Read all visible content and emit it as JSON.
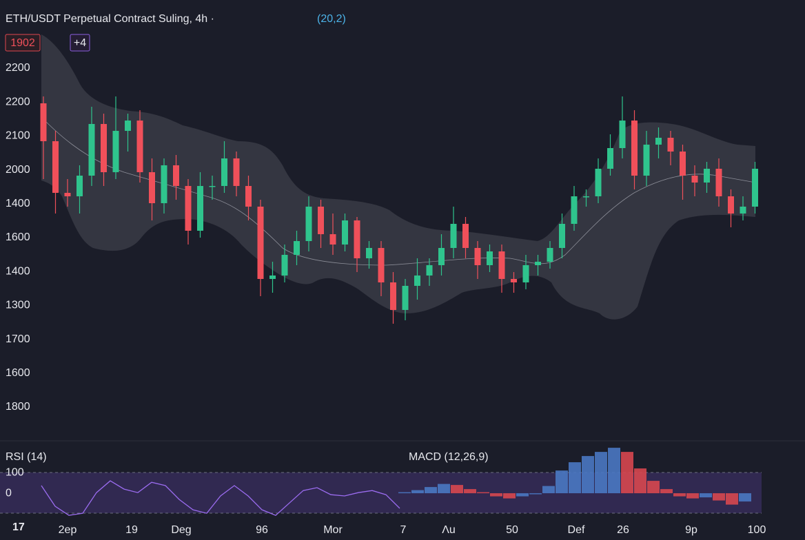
{
  "header": {
    "title": "ETH/USDT Perpetual Contract Suling, 4h ·",
    "params": "(20,2)",
    "badges": [
      "1902",
      "+4"
    ],
    "corner": "17"
  },
  "chart_data": [
    {
      "type": "candlestick",
      "ylim": [
        1700,
        2300
      ],
      "up_color": "#2fc48d",
      "down_color": "#f0505a",
      "axis_labels": [
        2200,
        2200,
        2100,
        2000,
        1400,
        1600,
        1400,
        1300,
        1700,
        1600,
        1800
      ],
      "x_labels": [
        "2ep",
        "19",
        "Deg",
        "96",
        "Mor",
        "7",
        "Λu",
        "50",
        "Def",
        "26",
        "9p",
        "100"
      ],
      "open": [
        2190,
        2135,
        2060,
        2055,
        2085,
        2160,
        2090,
        2150,
        2165,
        2090,
        2045,
        2100,
        2070,
        2005,
        2070,
        2070,
        2110,
        2070,
        2040,
        1935,
        1940,
        1970,
        1990,
        2040,
        2000,
        1985,
        2020,
        1965,
        1980,
        1930,
        1890,
        1925,
        1940,
        1955,
        1980,
        2015,
        1980,
        1955,
        1975,
        1935,
        1930,
        1955,
        1960,
        1980,
        2015,
        2055,
        2055,
        2095,
        2125,
        2165,
        2085,
        2130,
        2140,
        2120,
        2085,
        2075,
        2095,
        2055,
        2030,
        2040
      ],
      "high": [
        2200,
        2150,
        2080,
        2100,
        2185,
        2175,
        2200,
        2175,
        2180,
        2110,
        2110,
        2115,
        2080,
        2090,
        2085,
        2135,
        2120,
        2085,
        2050,
        1960,
        1985,
        2005,
        2055,
        2050,
        2030,
        2030,
        2025,
        1990,
        1990,
        1945,
        1935,
        1965,
        1965,
        2000,
        2040,
        2025,
        1990,
        1985,
        1985,
        1945,
        1970,
        1970,
        1990,
        2030,
        2070,
        2065,
        2110,
        2145,
        2200,
        2180,
        2150,
        2155,
        2150,
        2130,
        2100,
        2105,
        2110,
        2065,
        2055,
        2105
      ],
      "low": [
        2080,
        2030,
        2040,
        2030,
        2070,
        2070,
        2080,
        2120,
        2075,
        2020,
        2030,
        2050,
        1985,
        1995,
        2050,
        2060,
        2055,
        2020,
        1910,
        1915,
        1930,
        1955,
        1975,
        1980,
        1970,
        1975,
        1945,
        1950,
        1910,
        1870,
        1875,
        1905,
        1925,
        1940,
        1965,
        1965,
        1935,
        1945,
        1915,
        1915,
        1920,
        1940,
        1950,
        1965,
        2005,
        2040,
        2045,
        2085,
        2110,
        2065,
        2070,
        2110,
        2100,
        2050,
        2055,
        2060,
        2040,
        2010,
        2020,
        2030
      ],
      "close": [
        2135,
        2060,
        2055,
        2085,
        2160,
        2090,
        2150,
        2165,
        2090,
        2045,
        2100,
        2070,
        2005,
        2070,
        2070,
        2110,
        2070,
        2040,
        1935,
        1940,
        1970,
        1990,
        2040,
        2000,
        1985,
        2020,
        1965,
        1980,
        1930,
        1890,
        1925,
        1940,
        1955,
        1980,
        2015,
        1980,
        1955,
        1975,
        1935,
        1930,
        1955,
        1960,
        1980,
        2015,
        2055,
        2055,
        2095,
        2125,
        2165,
        2085,
        2130,
        2140,
        2120,
        2085,
        2075,
        2095,
        2055,
        2030,
        2040,
        2095
      ]
    },
    {
      "type": "indicator",
      "ylim": [
        -113,
        247
      ],
      "yticks": [
        100,
        0
      ],
      "rsi": {
        "name": "RSI (14)",
        "color": "#9b6cf0",
        "values": [
          37,
          -63,
          -107,
          -97,
          3,
          60,
          20,
          3,
          53,
          37,
          -30,
          -80,
          -97,
          -13,
          37,
          -13,
          -80,
          -107,
          -47,
          13,
          27,
          -7,
          -13,
          3,
          13,
          -7,
          -73
        ]
      },
      "macd": {
        "name": "MACD (12,26,9)",
        "rising_color": "#4a78c2",
        "falling_color": "#d8474f",
        "values": [
          5,
          15,
          30,
          45,
          40,
          20,
          5,
          -15,
          -25,
          -15,
          -5,
          35,
          110,
          150,
          180,
          200,
          220,
          200,
          120,
          60,
          20,
          -15,
          -25,
          -20,
          -35,
          -55,
          -40
        ]
      }
    }
  ]
}
